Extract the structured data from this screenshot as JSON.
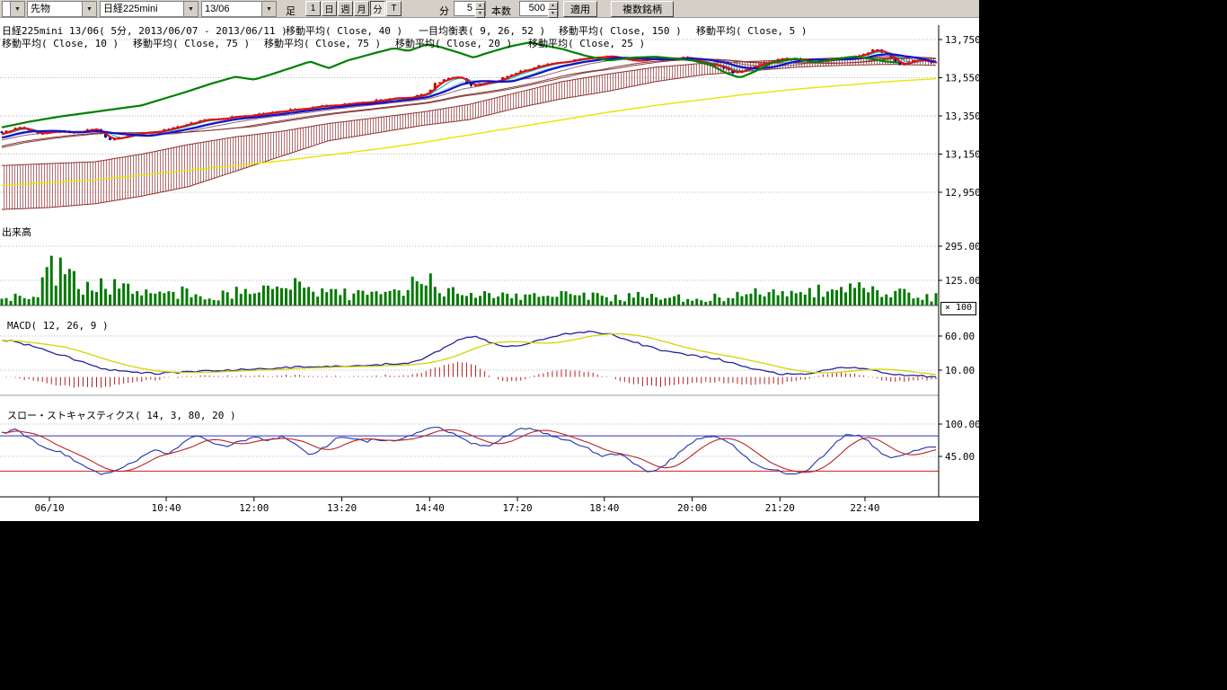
{
  "toolbar": {
    "instrument_type": "先物",
    "symbol": "日経225mini",
    "contract_month": "13/06",
    "bar_type_label": "足",
    "period_buttons": [
      "1",
      "日",
      "週",
      "月",
      "分",
      "T"
    ],
    "pressed_period": "分",
    "minute_label": "分",
    "minute_value": "5",
    "bars_label": "本数",
    "bars_value": "500",
    "apply_label": "適用",
    "multi_symbol_label": "複数銘柄"
  },
  "legend": {
    "row1": [
      "日経225mini 13/06( 5分, 2013/06/07 - 2013/06/11 )",
      "移動平均( Close, 40 )",
      "一目均衡表( 9, 26, 52 )",
      "移動平均( Close, 150 )",
      "移動平均( Close, 5 )"
    ],
    "row2": [
      "移動平均( Close, 10 )",
      "移動平均( Close, 75 )",
      "移動平均( Close, 75 )",
      "移動平均( Close, 20 )",
      "移動平均( Close, 25 )"
    ]
  },
  "panels": {
    "volume_label": "出来高",
    "macd_label": "MACD( 12, 26, 9 )",
    "stoch_label": "スロー・ストキャスティクス( 14, 3, 80, 20 )",
    "volume_multiplier": "× 100"
  },
  "chart_data": {
    "type": "candlestick",
    "title": "日経225mini 13/06 5分足 2013/06/07 - 2013/06/11",
    "x_axis": {
      "labels": [
        "06/10",
        "10:40",
        "12:00",
        "13:20",
        "14:40",
        "17:20",
        "18:40",
        "20:00",
        "21:20",
        "22:40"
      ],
      "positions": [
        0.051,
        0.176,
        0.27,
        0.364,
        0.458,
        0.552,
        0.645,
        0.739,
        0.833,
        0.924
      ]
    },
    "price_axis": {
      "ticks": [
        13750,
        13550,
        13350,
        13150,
        12950
      ],
      "labels": [
        "13,750",
        "13,550",
        "13,350",
        "13,150",
        "12,950"
      ]
    },
    "price_close_keyframes": [
      [
        0,
        13265
      ],
      [
        0.02,
        13290
      ],
      [
        0.04,
        13255
      ],
      [
        0.06,
        13270
      ],
      [
        0.08,
        13260
      ],
      [
        0.1,
        13285
      ],
      [
        0.115,
        13225
      ],
      [
        0.13,
        13240
      ],
      [
        0.15,
        13260
      ],
      [
        0.17,
        13270
      ],
      [
        0.19,
        13300
      ],
      [
        0.22,
        13330
      ],
      [
        0.25,
        13345
      ],
      [
        0.28,
        13360
      ],
      [
        0.3,
        13375
      ],
      [
        0.33,
        13395
      ],
      [
        0.36,
        13405
      ],
      [
        0.39,
        13425
      ],
      [
        0.42,
        13440
      ],
      [
        0.445,
        13455
      ],
      [
        0.455,
        13470
      ],
      [
        0.465,
        13525
      ],
      [
        0.475,
        13540
      ],
      [
        0.49,
        13555
      ],
      [
        0.5,
        13510
      ],
      [
        0.515,
        13520
      ],
      [
        0.53,
        13535
      ],
      [
        0.55,
        13575
      ],
      [
        0.57,
        13605
      ],
      [
        0.59,
        13625
      ],
      [
        0.61,
        13640
      ],
      [
        0.63,
        13650
      ],
      [
        0.65,
        13660
      ],
      [
        0.67,
        13640
      ],
      [
        0.69,
        13645
      ],
      [
        0.71,
        13650
      ],
      [
        0.73,
        13655
      ],
      [
        0.75,
        13625
      ],
      [
        0.77,
        13605
      ],
      [
        0.785,
        13570
      ],
      [
        0.8,
        13600
      ],
      [
        0.82,
        13635
      ],
      [
        0.84,
        13650
      ],
      [
        0.86,
        13645
      ],
      [
        0.88,
        13640
      ],
      [
        0.9,
        13655
      ],
      [
        0.92,
        13665
      ],
      [
        0.935,
        13700
      ],
      [
        0.95,
        13660
      ],
      [
        0.962,
        13615
      ],
      [
        0.975,
        13640
      ],
      [
        1,
        13630
      ]
    ],
    "ichimoku": {
      "params": "9, 26, 52",
      "senkou_a": [
        [
          0,
          13090
        ],
        [
          0.05,
          13100
        ],
        [
          0.1,
          13110
        ],
        [
          0.15,
          13150
        ],
        [
          0.2,
          13200
        ],
        [
          0.25,
          13240
        ],
        [
          0.3,
          13270
        ],
        [
          0.35,
          13310
        ],
        [
          0.4,
          13340
        ],
        [
          0.45,
          13370
        ],
        [
          0.5,
          13410
        ],
        [
          0.55,
          13470
        ],
        [
          0.6,
          13530
        ],
        [
          0.65,
          13570
        ],
        [
          0.7,
          13605
        ],
        [
          0.75,
          13625
        ],
        [
          0.8,
          13635
        ],
        [
          0.85,
          13645
        ],
        [
          0.9,
          13655
        ],
        [
          0.95,
          13655
        ],
        [
          1,
          13650
        ]
      ],
      "senkou_b": [
        [
          0,
          12860
        ],
        [
          0.05,
          12870
        ],
        [
          0.1,
          12890
        ],
        [
          0.15,
          12930
        ],
        [
          0.2,
          12980
        ],
        [
          0.25,
          13060
        ],
        [
          0.3,
          13140
        ],
        [
          0.35,
          13220
        ],
        [
          0.4,
          13260
        ],
        [
          0.45,
          13300
        ],
        [
          0.5,
          13330
        ],
        [
          0.55,
          13390
        ],
        [
          0.6,
          13440
        ],
        [
          0.65,
          13480
        ],
        [
          0.7,
          13530
        ],
        [
          0.75,
          13565
        ],
        [
          0.8,
          13585
        ],
        [
          0.85,
          13605
        ],
        [
          0.9,
          13615
        ],
        [
          0.95,
          13620
        ],
        [
          1,
          13615
        ]
      ],
      "chikou": [
        [
          0,
          13290
        ],
        [
          0.03,
          13320
        ],
        [
          0.06,
          13345
        ],
        [
          0.09,
          13365
        ],
        [
          0.12,
          13385
        ],
        [
          0.15,
          13405
        ],
        [
          0.17,
          13435
        ],
        [
          0.2,
          13480
        ],
        [
          0.225,
          13520
        ],
        [
          0.25,
          13555
        ],
        [
          0.27,
          13540
        ],
        [
          0.29,
          13570
        ],
        [
          0.315,
          13610
        ],
        [
          0.33,
          13635
        ],
        [
          0.35,
          13600
        ],
        [
          0.37,
          13640
        ],
        [
          0.4,
          13680
        ],
        [
          0.42,
          13705
        ],
        [
          0.435,
          13690
        ],
        [
          0.455,
          13725
        ],
        [
          0.47,
          13710
        ],
        [
          0.49,
          13680
        ],
        [
          0.505,
          13655
        ],
        [
          0.52,
          13680
        ],
        [
          0.545,
          13715
        ],
        [
          0.565,
          13735
        ],
        [
          0.58,
          13720
        ],
        [
          0.6,
          13700
        ],
        [
          0.625,
          13665
        ],
        [
          0.65,
          13640
        ],
        [
          0.675,
          13655
        ],
        [
          0.7,
          13660
        ],
        [
          0.72,
          13650
        ],
        [
          0.74,
          13640
        ],
        [
          0.76,
          13615
        ],
        [
          0.775,
          13575
        ],
        [
          0.79,
          13550
        ],
        [
          0.805,
          13580
        ],
        [
          0.825,
          13630
        ],
        [
          0.85,
          13650
        ],
        [
          0.87,
          13630
        ],
        [
          0.89,
          13645
        ],
        [
          0.91,
          13660
        ],
        [
          0.93,
          13650
        ],
        [
          0.945,
          13635
        ],
        [
          0.96,
          13630
        ]
      ]
    },
    "ma150_keyframes": [
      [
        0,
        12985
      ],
      [
        0.05,
        13000
      ],
      [
        0.1,
        13015
      ],
      [
        0.15,
        13040
      ],
      [
        0.2,
        13065
      ],
      [
        0.25,
        13090
      ],
      [
        0.3,
        13115
      ],
      [
        0.35,
        13145
      ],
      [
        0.4,
        13175
      ],
      [
        0.45,
        13210
      ],
      [
        0.5,
        13250
      ],
      [
        0.55,
        13290
      ],
      [
        0.6,
        13330
      ],
      [
        0.65,
        13370
      ],
      [
        0.7,
        13405
      ],
      [
        0.75,
        13435
      ],
      [
        0.8,
        13465
      ],
      [
        0.85,
        13490
      ],
      [
        0.9,
        13510
      ],
      [
        0.95,
        13530
      ],
      [
        1,
        13545
      ]
    ],
    "volume": {
      "ticks": [
        295,
        125
      ],
      "labels": [
        "295.00",
        "125.00"
      ],
      "multiplier": 100,
      "keyframes": [
        [
          0,
          30
        ],
        [
          0.04,
          60
        ],
        [
          0.05,
          290
        ],
        [
          0.06,
          160
        ],
        [
          0.08,
          120
        ],
        [
          0.1,
          90
        ],
        [
          0.12,
          100
        ],
        [
          0.15,
          60
        ],
        [
          0.18,
          50
        ],
        [
          0.2,
          70
        ],
        [
          0.24,
          50
        ],
        [
          0.28,
          90
        ],
        [
          0.3,
          110
        ],
        [
          0.32,
          80
        ],
        [
          0.34,
          90
        ],
        [
          0.36,
          60
        ],
        [
          0.38,
          50
        ],
        [
          0.4,
          60
        ],
        [
          0.43,
          50
        ],
        [
          0.445,
          150
        ],
        [
          0.455,
          170
        ],
        [
          0.465,
          120
        ],
        [
          0.48,
          70
        ],
        [
          0.5,
          60
        ],
        [
          0.52,
          50
        ],
        [
          0.55,
          60
        ],
        [
          0.58,
          50
        ],
        [
          0.6,
          55
        ],
        [
          0.62,
          60
        ],
        [
          0.64,
          50
        ],
        [
          0.66,
          40
        ],
        [
          0.68,
          45
        ],
        [
          0.7,
          40
        ],
        [
          0.73,
          35
        ],
        [
          0.76,
          40
        ],
        [
          0.79,
          45
        ],
        [
          0.82,
          70
        ],
        [
          0.84,
          60
        ],
        [
          0.86,
          80
        ],
        [
          0.88,
          70
        ],
        [
          0.9,
          90
        ],
        [
          0.92,
          80
        ],
        [
          0.94,
          70
        ],
        [
          0.96,
          60
        ],
        [
          0.98,
          50
        ],
        [
          1,
          40
        ]
      ]
    },
    "macd": {
      "params": "12, 26, 9",
      "ticks": [
        60,
        10
      ],
      "labels": [
        "60.00",
        "10.00"
      ],
      "keyframes": [
        [
          0,
          55
        ],
        [
          0.02,
          50
        ],
        [
          0.05,
          38
        ],
        [
          0.08,
          25
        ],
        [
          0.11,
          12
        ],
        [
          0.14,
          6
        ],
        [
          0.17,
          5
        ],
        [
          0.2,
          8
        ],
        [
          0.24,
          10
        ],
        [
          0.28,
          12
        ],
        [
          0.31,
          14
        ],
        [
          0.34,
          15
        ],
        [
          0.37,
          16
        ],
        [
          0.4,
          18
        ],
        [
          0.43,
          20
        ],
        [
          0.45,
          25
        ],
        [
          0.47,
          40
        ],
        [
          0.49,
          55
        ],
        [
          0.505,
          60
        ],
        [
          0.52,
          52
        ],
        [
          0.54,
          45
        ],
        [
          0.56,
          48
        ],
        [
          0.58,
          55
        ],
        [
          0.6,
          62
        ],
        [
          0.62,
          65
        ],
        [
          0.635,
          66
        ],
        [
          0.65,
          63
        ],
        [
          0.67,
          55
        ],
        [
          0.69,
          45
        ],
        [
          0.71,
          38
        ],
        [
          0.73,
          33
        ],
        [
          0.75,
          30
        ],
        [
          0.77,
          25
        ],
        [
          0.79,
          18
        ],
        [
          0.81,
          10
        ],
        [
          0.83,
          5
        ],
        [
          0.85,
          3
        ],
        [
          0.87,
          5
        ],
        [
          0.885,
          12
        ],
        [
          0.9,
          15
        ],
        [
          0.915,
          14
        ],
        [
          0.93,
          10
        ],
        [
          0.95,
          5
        ],
        [
          0.97,
          2
        ],
        [
          1,
          1
        ]
      ]
    },
    "stochastics": {
      "params": "14, 3, 80, 20",
      "ticks": [
        100,
        45
      ],
      "labels": [
        "100.00",
        "45.00"
      ],
      "upper": 80,
      "lower": 20,
      "k_keyframes": [
        [
          0,
          85
        ],
        [
          0.015,
          90
        ],
        [
          0.03,
          75
        ],
        [
          0.045,
          60
        ],
        [
          0.06,
          55
        ],
        [
          0.075,
          40
        ],
        [
          0.09,
          25
        ],
        [
          0.105,
          15
        ],
        [
          0.12,
          18
        ],
        [
          0.135,
          30
        ],
        [
          0.15,
          45
        ],
        [
          0.165,
          55
        ],
        [
          0.18,
          50
        ],
        [
          0.2,
          75
        ],
        [
          0.21,
          82
        ],
        [
          0.225,
          70
        ],
        [
          0.24,
          60
        ],
        [
          0.255,
          70
        ],
        [
          0.27,
          78
        ],
        [
          0.285,
          72
        ],
        [
          0.3,
          80
        ],
        [
          0.315,
          65
        ],
        [
          0.33,
          45
        ],
        [
          0.345,
          60
        ],
        [
          0.36,
          80
        ],
        [
          0.375,
          78
        ],
        [
          0.39,
          70
        ],
        [
          0.4,
          75
        ],
        [
          0.42,
          72
        ],
        [
          0.44,
          80
        ],
        [
          0.45,
          90
        ],
        [
          0.465,
          95
        ],
        [
          0.48,
          85
        ],
        [
          0.5,
          70
        ],
        [
          0.515,
          60
        ],
        [
          0.53,
          70
        ],
        [
          0.55,
          88
        ],
        [
          0.565,
          95
        ],
        [
          0.58,
          85
        ],
        [
          0.6,
          75
        ],
        [
          0.62,
          65
        ],
        [
          0.63,
          55
        ],
        [
          0.645,
          45
        ],
        [
          0.66,
          50
        ],
        [
          0.675,
          35
        ],
        [
          0.69,
          20
        ],
        [
          0.705,
          25
        ],
        [
          0.72,
          45
        ],
        [
          0.74,
          70
        ],
        [
          0.755,
          80
        ],
        [
          0.77,
          75
        ],
        [
          0.785,
          60
        ],
        [
          0.8,
          40
        ],
        [
          0.815,
          25
        ],
        [
          0.83,
          20
        ],
        [
          0.845,
          15
        ],
        [
          0.86,
          18
        ],
        [
          0.875,
          40
        ],
        [
          0.89,
          65
        ],
        [
          0.905,
          85
        ],
        [
          0.92,
          80
        ],
        [
          0.935,
          60
        ],
        [
          0.95,
          40
        ],
        [
          0.965,
          45
        ],
        [
          0.98,
          55
        ],
        [
          1,
          62
        ]
      ]
    },
    "colors": {
      "up_candle": "#cc0000",
      "down_candle": "#0000aa",
      "chikou": "#008000",
      "cloud_border": "#8b3333",
      "cloud_hatch": "#a04848",
      "ma5": "#dd1111",
      "ma10": "#00b7b7",
      "ma20": "#7fd4d4",
      "ma25": "#1111cc",
      "ma40": "#996666",
      "ma75": "#8b3a3a",
      "ma150": "#e6e600",
      "volume": "#007a00",
      "macd_line": "#2222a0",
      "macd_signal": "#d4d400",
      "macd_hist": "#b22222",
      "stoch_k": "#2233aa",
      "stoch_d": "#bb2222",
      "stoch_upper": "#3333bb",
      "stoch_lower": "#cc2222",
      "grid": "#b8b8b8",
      "axis": "#000000"
    }
  }
}
